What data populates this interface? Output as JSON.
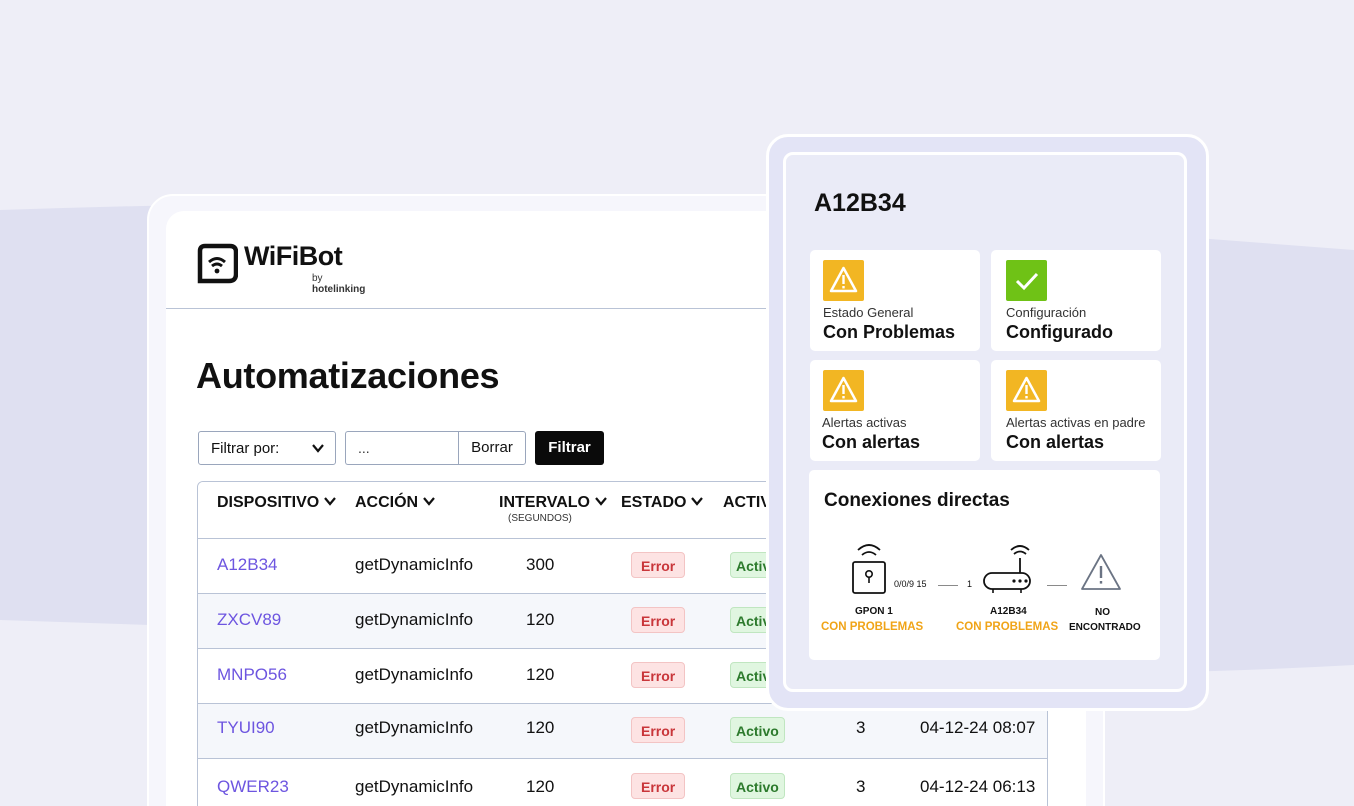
{
  "app": {
    "logo_word": "WiFiBot",
    "logo_by": "by",
    "logo_brand": "hotelinking"
  },
  "page": {
    "title": "Automatizaciones"
  },
  "filters": {
    "select_label": "Filtrar por:",
    "input_placeholder": "...",
    "clear_label": "Borrar",
    "filter_label": "Filtrar"
  },
  "table": {
    "headers": {
      "device": "DISPOSITIVO",
      "action": "ACCIÓN",
      "interval": "INTERVALO",
      "interval_sub": "(SEGUNDOS)",
      "status": "ESTADO",
      "active": "ACTIV"
    },
    "rows": [
      {
        "device": "A12B34",
        "action": "getDynamicInfo",
        "interval": "300",
        "status": "Error",
        "active": "Activo",
        "count": "",
        "date": ""
      },
      {
        "device": "ZXCV89",
        "action": "getDynamicInfo",
        "interval": "120",
        "status": "Error",
        "active": "Activo",
        "count": "",
        "date": ""
      },
      {
        "device": "MNPO56",
        "action": "getDynamicInfo",
        "interval": "120",
        "status": "Error",
        "active": "Activo",
        "count": "",
        "date": ""
      },
      {
        "device": "TYUI90",
        "action": "getDynamicInfo",
        "interval": "120",
        "status": "Error",
        "active": "Activo",
        "count": "3",
        "date": "04-12-24 08:07"
      },
      {
        "device": "QWER23",
        "action": "getDynamicInfo",
        "interval": "120",
        "status": "Error",
        "active": "Activo",
        "count": "3",
        "date": "04-12-24 06:13"
      }
    ]
  },
  "detail": {
    "title": "A12B34",
    "stats": [
      {
        "icon": "warning-icon",
        "label": "Estado General",
        "value": "Con Problemas"
      },
      {
        "icon": "check-icon",
        "label": "Configuración",
        "value": "Configurado"
      },
      {
        "icon": "warning-icon",
        "label": "Alertas activas",
        "value": "Con alertas"
      },
      {
        "icon": "warning-icon",
        "label": "Alertas activas en padre",
        "value": "Con alertas"
      }
    ],
    "connections": {
      "title": "Conexiones directas",
      "link1": "0/0/9 15",
      "link2": "1",
      "nodes": [
        {
          "name": "GPON 1",
          "status": "CON PROBLEMAS"
        },
        {
          "name": "A12B34",
          "status": "CON PROBLEMAS"
        },
        {
          "name": "NO",
          "name2": "ENCONTRADO"
        }
      ]
    }
  },
  "colors": {
    "background": "#eeeef7",
    "accent_link": "#6d55e0",
    "warning": "#f2b623",
    "ok": "#6fc216",
    "error_text": "#c9363a",
    "active_text": "#2c7a2c",
    "problem_text": "#f0a418"
  }
}
